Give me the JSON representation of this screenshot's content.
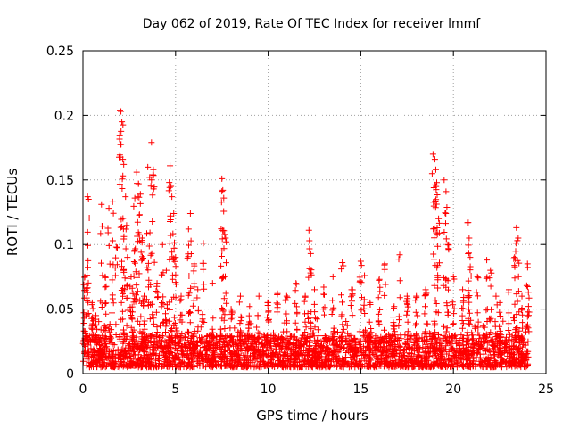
{
  "chart_data": {
    "type": "scatter",
    "title": "Day 062 of 2019, Rate Of TEC Index for receiver lmmf",
    "xlabel": "GPS time / hours",
    "ylabel": "ROTI / TECUs",
    "xlim": [
      0,
      25
    ],
    "ylim": [
      0,
      0.25
    ],
    "xticks": [
      0,
      5,
      10,
      15,
      20,
      25
    ],
    "xtick_labels": [
      "0",
      "5",
      "10",
      "15",
      "20",
      "25"
    ],
    "yticks": [
      0,
      0.05,
      0.1,
      0.15,
      0.2,
      0.25
    ],
    "ytick_labels": [
      "0",
      "0.05",
      "0.1",
      "0.15",
      "0.2",
      "0.25"
    ],
    "grid": true,
    "marker": "+",
    "color": "#ff0000",
    "series": [
      {
        "name": "ROTI",
        "baseline_band": [
          0.005,
          0.03
        ],
        "sampled_points": [
          [
            0.1,
            0.075
          ],
          [
            0.2,
            0.066
          ],
          [
            0.25,
            0.137
          ],
          [
            0.3,
            0.135
          ],
          [
            0.5,
            0.055
          ],
          [
            0.7,
            0.045
          ],
          [
            1.0,
            0.131
          ],
          [
            1.2,
            0.075
          ],
          [
            1.4,
            0.128
          ],
          [
            1.6,
            0.133
          ],
          [
            1.8,
            0.098
          ],
          [
            2.0,
            0.204
          ],
          [
            2.05,
            0.203
          ],
          [
            2.1,
            0.195
          ],
          [
            2.15,
            0.166
          ],
          [
            2.2,
            0.162
          ],
          [
            2.3,
            0.137
          ],
          [
            2.4,
            0.09
          ],
          [
            2.6,
            0.075
          ],
          [
            2.7,
            0.062
          ],
          [
            2.8,
            0.136
          ],
          [
            2.9,
            0.156
          ],
          [
            3.0,
            0.147
          ],
          [
            3.1,
            0.139
          ],
          [
            3.2,
            0.105
          ],
          [
            3.3,
            0.06
          ],
          [
            3.5,
            0.16
          ],
          [
            3.6,
            0.152
          ],
          [
            3.7,
            0.179
          ],
          [
            3.8,
            0.158
          ],
          [
            4.0,
            0.07
          ],
          [
            4.3,
            0.1
          ],
          [
            4.5,
            0.08
          ],
          [
            4.7,
            0.161
          ],
          [
            4.75,
            0.145
          ],
          [
            4.8,
            0.137
          ],
          [
            4.9,
            0.124
          ],
          [
            5.0,
            0.09
          ],
          [
            5.3,
            0.06
          ],
          [
            5.7,
            0.112
          ],
          [
            5.8,
            0.124
          ],
          [
            6.0,
            0.085
          ],
          [
            6.2,
            0.065
          ],
          [
            6.5,
            0.101
          ],
          [
            7.0,
            0.07
          ],
          [
            7.5,
            0.151
          ],
          [
            7.55,
            0.142
          ],
          [
            7.6,
            0.136
          ],
          [
            7.7,
            0.105
          ],
          [
            8.0,
            0.05
          ],
          [
            8.5,
            0.06
          ],
          [
            9.0,
            0.052
          ],
          [
            9.5,
            0.06
          ],
          [
            10.0,
            0.055
          ],
          [
            10.5,
            0.062
          ],
          [
            11.0,
            0.06
          ],
          [
            11.5,
            0.07
          ],
          [
            12.0,
            0.06
          ],
          [
            12.2,
            0.111
          ],
          [
            12.3,
            0.093
          ],
          [
            12.5,
            0.065
          ],
          [
            13.0,
            0.067
          ],
          [
            13.5,
            0.075
          ],
          [
            14.0,
            0.086
          ],
          [
            14.5,
            0.065
          ],
          [
            15.0,
            0.087
          ],
          [
            15.2,
            0.076
          ],
          [
            15.5,
            0.055
          ],
          [
            16.0,
            0.073
          ],
          [
            16.3,
            0.085
          ],
          [
            16.8,
            0.052
          ],
          [
            17.1,
            0.092
          ],
          [
            17.5,
            0.06
          ],
          [
            18.0,
            0.06
          ],
          [
            18.5,
            0.065
          ],
          [
            18.9,
            0.17
          ],
          [
            19.0,
            0.166
          ],
          [
            19.05,
            0.158
          ],
          [
            19.1,
            0.148
          ],
          [
            19.2,
            0.12
          ],
          [
            19.5,
            0.15
          ],
          [
            19.6,
            0.141
          ],
          [
            19.7,
            0.1
          ],
          [
            20.0,
            0.075
          ],
          [
            20.5,
            0.065
          ],
          [
            20.8,
            0.117
          ],
          [
            20.85,
            0.105
          ],
          [
            20.9,
            0.09
          ],
          [
            21.3,
            0.075
          ],
          [
            21.8,
            0.088
          ],
          [
            22.0,
            0.08
          ],
          [
            22.3,
            0.06
          ],
          [
            22.5,
            0.055
          ],
          [
            23.0,
            0.065
          ],
          [
            23.3,
            0.09
          ],
          [
            23.4,
            0.113
          ],
          [
            23.5,
            0.105
          ],
          [
            23.7,
            0.06
          ],
          [
            24.0,
            0.085
          ],
          [
            24.05,
            0.063
          ]
        ]
      }
    ]
  }
}
